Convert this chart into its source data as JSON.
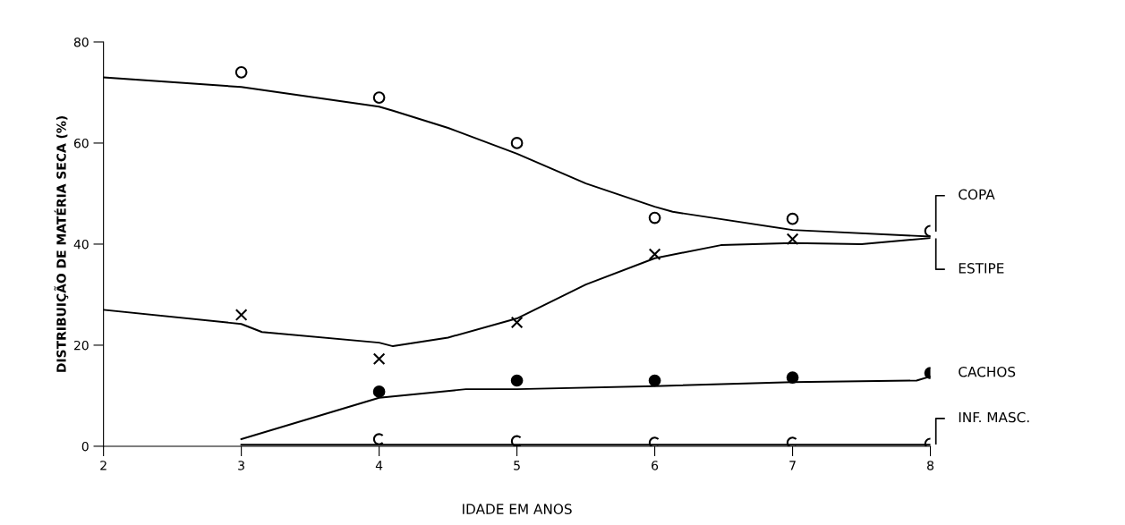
{
  "chart_data": {
    "type": "scatter",
    "xlabel": "IDADE EM ANOS",
    "ylabel": "DISTRIBUIÇÃO DE MATÉRIA SECA (%)",
    "xlim": [
      2,
      8
    ],
    "xticks": [
      2,
      3,
      4,
      5,
      6,
      7,
      8
    ],
    "ylim": [
      0,
      80
    ],
    "yticks": [
      0,
      20,
      40,
      60,
      80
    ],
    "grid": false,
    "legend": false,
    "series": [
      {
        "name": "COPA",
        "marker": "circle",
        "color": "#000000",
        "x": [
          3,
          4,
          5,
          6,
          7,
          8
        ],
        "values": [
          74,
          69,
          60,
          45.2,
          45,
          42.6
        ]
      },
      {
        "name": "ESTIPE",
        "marker": "cross",
        "color": "#000000",
        "x": [
          3,
          4,
          5,
          6,
          7
        ],
        "values": [
          26,
          17.3,
          24.5,
          38,
          41
        ]
      },
      {
        "name": "CACHOS",
        "marker": "dot",
        "color": "#000000",
        "x": [
          4,
          5,
          6,
          7,
          8
        ],
        "values": [
          10.8,
          13,
          13,
          13.6,
          14.5
        ]
      },
      {
        "name": "INF. MASC.",
        "color": "#000000",
        "x": [
          4,
          5,
          6,
          7,
          8
        ],
        "values": [
          1.4,
          1,
          0.7,
          0.7,
          0.5
        ]
      },
      {
        "type": "line",
        "color": "#000000",
        "line_style": "solid",
        "x": [
          2,
          3,
          4,
          4.1,
          4.5,
          5,
          5.5,
          6,
          6.13,
          7,
          8
        ],
        "values": [
          73,
          71.1,
          67.2,
          66.4,
          63,
          57.9,
          52,
          47.4,
          46.4,
          42.8,
          41.5
        ]
      },
      {
        "type": "line",
        "color": "#000000",
        "line_style": "solid",
        "x": [
          2,
          3,
          3.15,
          4,
          4.1,
          4.5,
          5,
          5.5,
          6,
          6.48,
          7,
          7.5,
          8
        ],
        "values": [
          27,
          24.2,
          22.6,
          20.5,
          19.8,
          21.5,
          25.3,
          32,
          37.2,
          39.8,
          40.2,
          40,
          41.2
        ]
      },
      {
        "type": "line",
        "color": "#000000",
        "line_style": "solid",
        "x": [
          3,
          4,
          4.63,
          5,
          6,
          7,
          7.9,
          8
        ],
        "values": [
          1.4,
          9.6,
          11.3,
          11.3,
          11.9,
          12.7,
          13,
          13.8
        ]
      },
      {
        "type": "line",
        "color": "#000000",
        "line_style": "solid",
        "x": [
          3,
          8
        ],
        "values": [
          0.3,
          0.3
        ]
      }
    ]
  }
}
